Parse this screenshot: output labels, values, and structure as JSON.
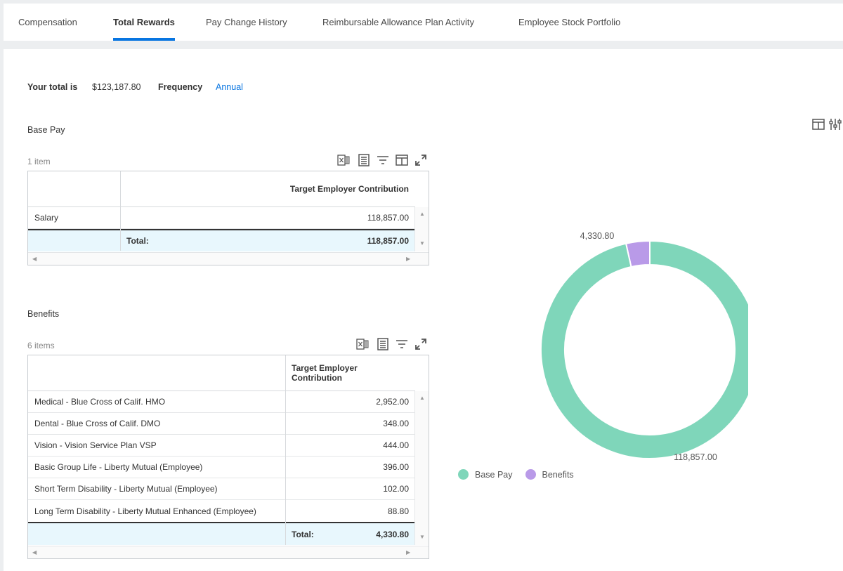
{
  "tabs": [
    {
      "label": "Compensation",
      "active": false
    },
    {
      "label": "Total Rewards",
      "active": true
    },
    {
      "label": "Pay Change History",
      "active": false
    },
    {
      "label": "Reimbursable Allowance Plan Activity",
      "active": false
    },
    {
      "label": "Employee Stock Portfolio",
      "active": false
    }
  ],
  "summary": {
    "total_label": "Your total is",
    "total_value": "$123,187.80",
    "frequency_label": "Frequency",
    "frequency_value": "Annual"
  },
  "base_pay": {
    "title": "Base Pay",
    "count": "1 item",
    "column_header": "Target Employer Contribution",
    "rows": [
      {
        "name": "Salary",
        "value": "118,857.00"
      }
    ],
    "total_label": "Total:",
    "total_value": "118,857.00"
  },
  "benefits": {
    "title": "Benefits",
    "count": "6 items",
    "column_header": "Target Employer Contribution",
    "rows": [
      {
        "name": "Medical - Blue Cross of Calif. HMO",
        "value": "2,952.00"
      },
      {
        "name": "Dental - Blue Cross of Calif. DMO",
        "value": "348.00"
      },
      {
        "name": "Vision - Vision Service Plan VSP",
        "value": "444.00"
      },
      {
        "name": "Basic Group Life - Liberty Mutual  (Employee)",
        "value": "396.00"
      },
      {
        "name": "Short Term Disability - Liberty Mutual  (Employee)",
        "value": "102.00"
      },
      {
        "name": "Long Term Disability - Liberty Mutual Enhanced (Employee)",
        "value": "88.80"
      }
    ],
    "total_label": "Total:",
    "total_value": "4,330.80"
  },
  "chart_data": {
    "type": "pie",
    "variant": "donut",
    "categories": [
      "Base Pay",
      "Benefits"
    ],
    "values": [
      118857.0,
      4330.8
    ],
    "data_labels": [
      "118,857.00",
      "4,330.80"
    ],
    "colors": [
      "#7fd6ba",
      "#b99ae8"
    ],
    "legend_position": "bottom-left"
  },
  "icons": {
    "export_excel": "excel-export-icon",
    "pdf": "pdf-icon",
    "filter": "filter-icon",
    "columns": "columns-icon",
    "fullscreen": "fullscreen-icon",
    "chart_settings": "settings-sliders-icon"
  }
}
